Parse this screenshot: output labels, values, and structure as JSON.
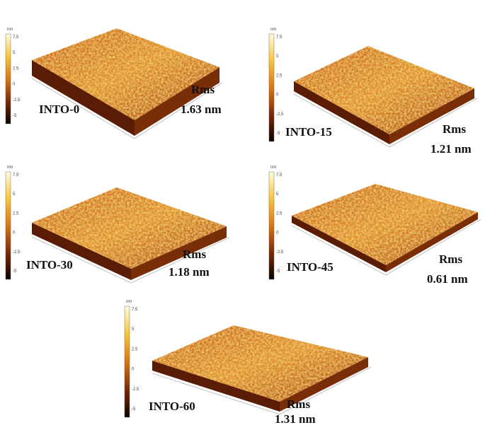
{
  "colorbar": {
    "unit": "nm",
    "ticks": [
      "7.5",
      "5",
      "2.5",
      "0",
      "-2.5",
      "-5"
    ]
  },
  "panels": [
    {
      "label": "INTO-0",
      "rms_label": "Rms",
      "rms": "1.63 nm"
    },
    {
      "label": "INTO-15",
      "rms_label": "Rms",
      "rms": "1.21 nm"
    },
    {
      "label": "INTO-30",
      "rms_label": "Rms",
      "rms": "1.18 nm"
    },
    {
      "label": "INTO-45",
      "rms_label": "Rms",
      "rms": "0.61 nm"
    },
    {
      "label": "INTO-60",
      "rms_label": "Rms",
      "rms": "1.31 nm"
    }
  ]
}
